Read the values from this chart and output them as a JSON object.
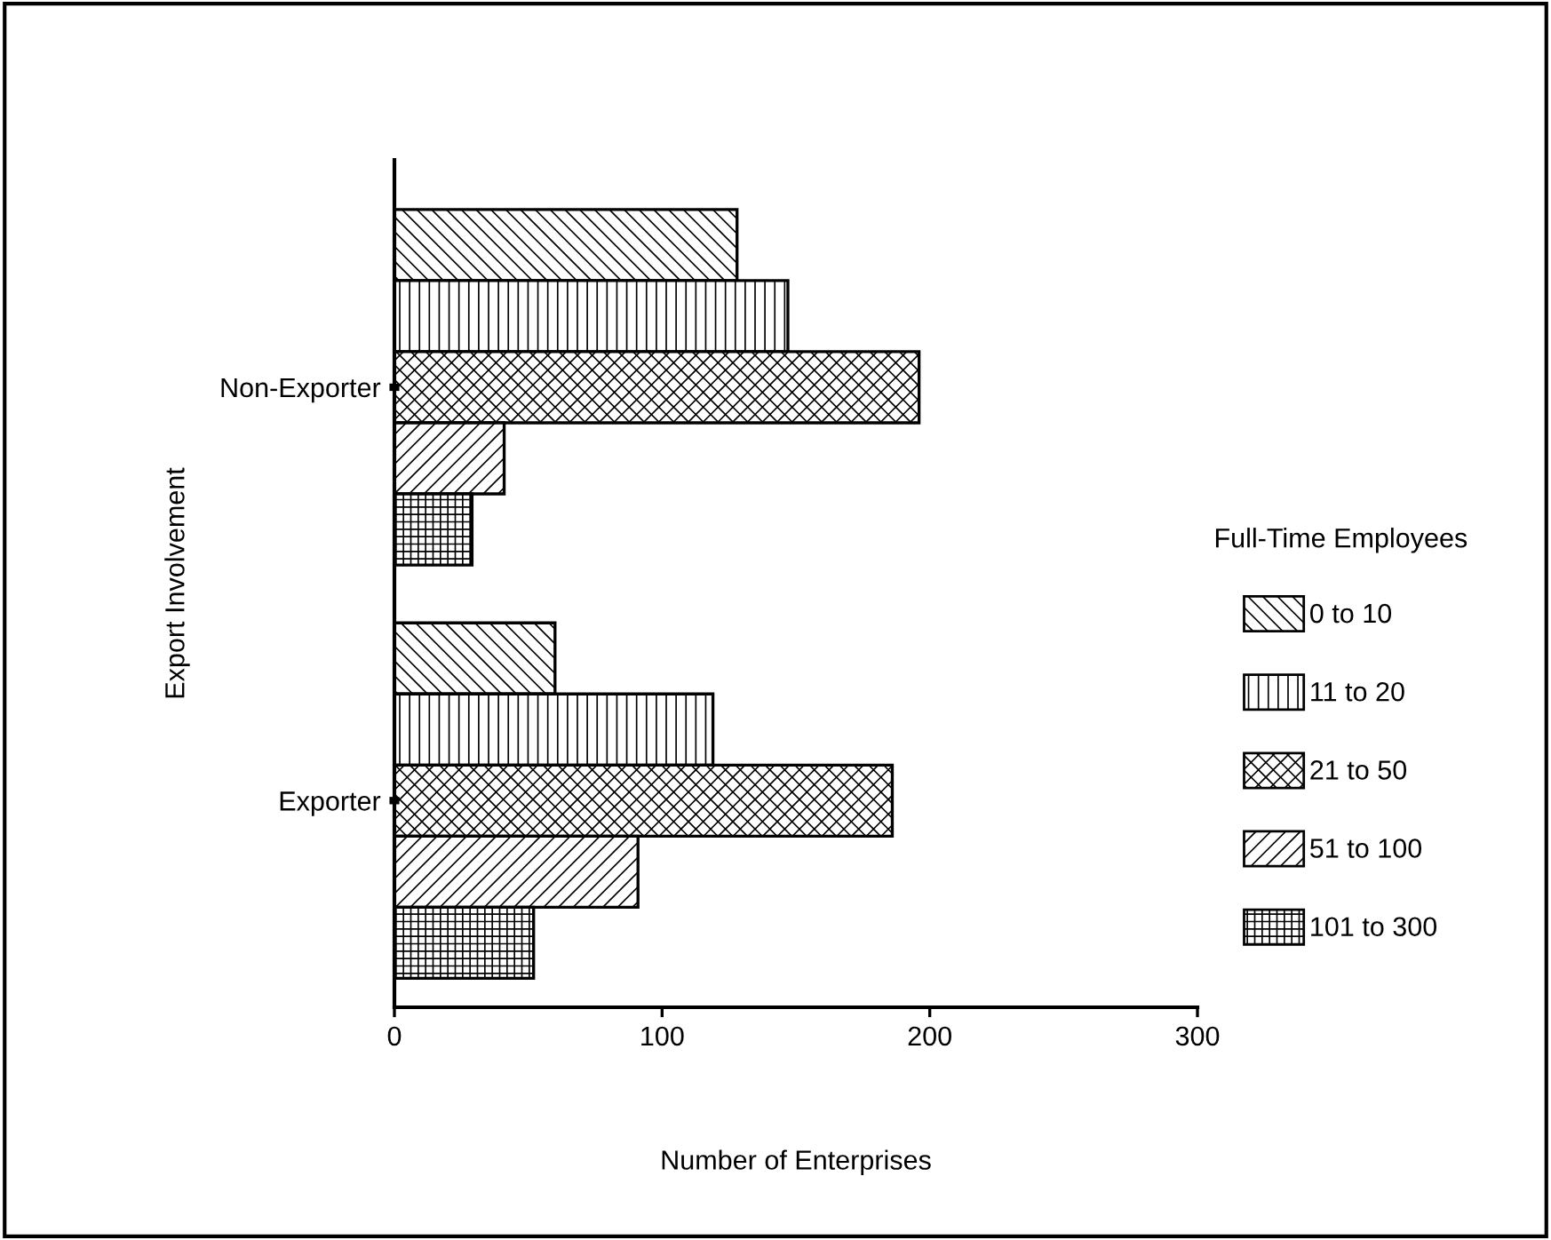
{
  "chart_data": {
    "type": "bar",
    "orientation": "horizontal",
    "xlabel": "Number of Enterprises",
    "ylabel": "Export Involvement",
    "legend_title": "Full-Time Employees",
    "legend": "right",
    "categories": [
      "Non-Exporter",
      "Exporter"
    ],
    "series": [
      {
        "name": "0 to 10",
        "color": "#000000",
        "values": [
          128,
          60
        ]
      },
      {
        "name": "11 to 20",
        "color": "#000000",
        "values": [
          147,
          119
        ]
      },
      {
        "name": "21 to 50",
        "color": "#000000",
        "values": [
          196,
          186
        ]
      },
      {
        "name": "51 to 100",
        "color": "#000000",
        "values": [
          41,
          91
        ]
      },
      {
        "name": "101 to 300",
        "color": "#000000",
        "values": [
          29,
          52
        ]
      }
    ],
    "xlim": [
      0,
      300
    ],
    "xticks": [
      0,
      100,
      200,
      300
    ]
  }
}
